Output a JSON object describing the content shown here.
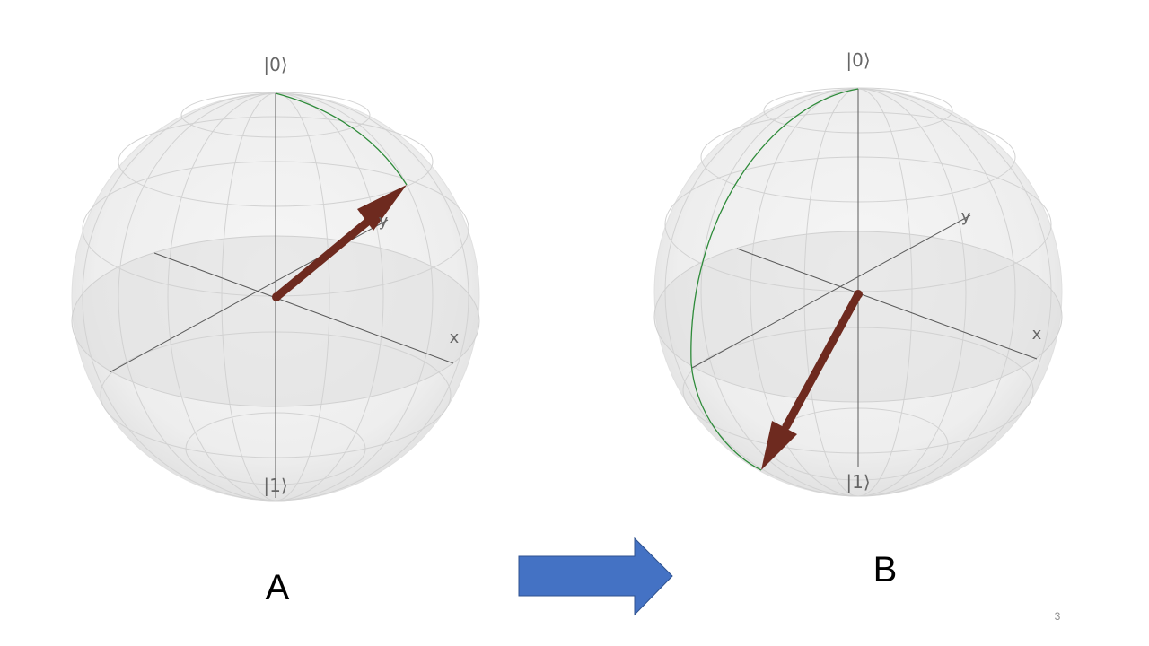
{
  "slide": {
    "page_number": "3",
    "arrow_color": "#4472c4"
  },
  "colors": {
    "state_vector": "#6e2a1f",
    "path": "#2e8b3a",
    "axis": "#555555",
    "sphere_fill": "#f0f0f0",
    "grid": "#cfcfcf"
  },
  "spheres": [
    {
      "panel_label": "A",
      "top_label": "|0⟩",
      "bottom_label": "|1⟩",
      "x_label": "x",
      "y_label": "y"
    },
    {
      "panel_label": "B",
      "top_label": "|0⟩",
      "bottom_label": "|1⟩",
      "x_label": "x",
      "y_label": "y"
    }
  ]
}
